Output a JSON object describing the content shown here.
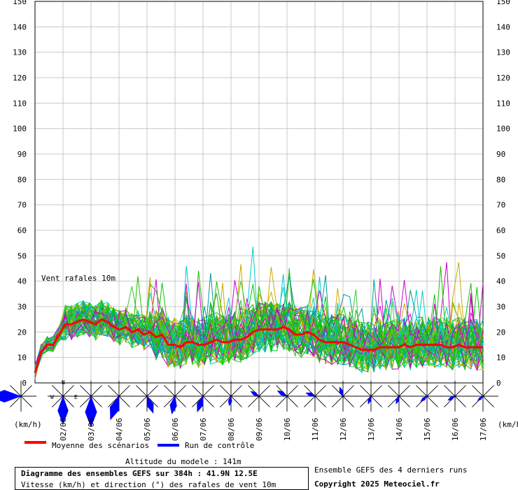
{
  "chart_data": {
    "type": "line",
    "series_label": "Vent rafales 10m",
    "ylim": [
      0,
      150
    ],
    "y_ticks": [
      0,
      10,
      20,
      30,
      40,
      50,
      60,
      70,
      80,
      90,
      100,
      110,
      120,
      130,
      140,
      150
    ],
    "y_unit_label": "(km/h)",
    "x_labels": [
      "02/06",
      "03/06",
      "04/06",
      "05/06",
      "06/06",
      "07/06",
      "08/06",
      "09/06",
      "10/06",
      "11/06",
      "12/06",
      "13/06",
      "14/06",
      "15/06",
      "16/06",
      "17/06"
    ],
    "compass": {
      "north": "N",
      "west": "W",
      "east": "E"
    },
    "mean_color": "#ff0000",
    "control_color": "#0000ff",
    "member_colors": [
      "#00cc00",
      "#22bb00",
      "#33cc33",
      "#cc00cc",
      "#00cccc",
      "#ccaa00",
      "#009999"
    ],
    "mean_series": [
      4,
      12,
      15,
      15,
      19,
      23,
      23,
      24,
      25,
      24,
      23,
      25,
      24,
      22,
      21,
      22,
      20,
      21,
      19,
      20,
      18,
      19,
      15,
      15,
      14,
      16,
      16,
      15,
      15,
      16,
      17,
      16,
      16,
      17,
      17,
      18,
      20,
      21,
      21,
      21,
      21,
      22,
      21,
      19,
      19,
      20,
      19,
      17,
      16,
      16,
      16,
      16,
      15,
      14,
      13,
      13,
      13,
      14,
      14,
      14,
      14,
      15,
      14,
      15,
      15,
      15,
      15,
      15,
      14,
      14,
      15,
      14,
      14,
      14,
      14
    ],
    "control_series": [
      3,
      10,
      17,
      18,
      22,
      24,
      26,
      28,
      27,
      30,
      26,
      24,
      28,
      22,
      20,
      18,
      21,
      17,
      16,
      14,
      13,
      15,
      12,
      17,
      18,
      14,
      15,
      16,
      18,
      14,
      12,
      19,
      22,
      17,
      15,
      20,
      24,
      18,
      16,
      21,
      23,
      17,
      15,
      14,
      18,
      16,
      14,
      12,
      15,
      19,
      13,
      12,
      14,
      16,
      11,
      13,
      15,
      12,
      14,
      16,
      13,
      11,
      15,
      17,
      12,
      14,
      13,
      15,
      11,
      14,
      16,
      12,
      13,
      11,
      10
    ],
    "wind_roses": [
      {
        "dir": 270,
        "len": 46
      },
      {
        "dir": 180,
        "len": 40
      },
      {
        "dir": 180,
        "len": 44
      },
      {
        "dir": 200,
        "len": 36
      },
      {
        "dir": 160,
        "len": 26
      },
      {
        "dir": 190,
        "len": 26
      },
      {
        "dir": 200,
        "len": 24
      },
      {
        "dir": 190,
        "len": 14
      },
      {
        "dir": 300,
        "len": 14
      },
      {
        "dir": 300,
        "len": 16
      },
      {
        "dir": 290,
        "len": 14
      },
      {
        "dir": 340,
        "len": 14
      },
      {
        "dir": 200,
        "len": 12
      },
      {
        "dir": 200,
        "len": 12
      },
      {
        "dir": 230,
        "len": 12
      },
      {
        "dir": 240,
        "len": 12
      },
      {
        "dir": 230,
        "len": 10
      }
    ]
  },
  "legend": {
    "mean_label": "Moyenne des scénarios",
    "control_label": "Run de contrôle"
  },
  "footer": {
    "altitude": "Altitude du modele : 141m",
    "title": "Diagramme des ensembles GEFS sur 384h : 41.9N 12.5E",
    "subtitle": "Vitesse (km/h) et direction (°) des rafales de vent 10m",
    "ensemble_note": "Ensemble GEFS des 4 derniers runs",
    "copyright": "Copyright 2025 Meteociel.fr"
  }
}
